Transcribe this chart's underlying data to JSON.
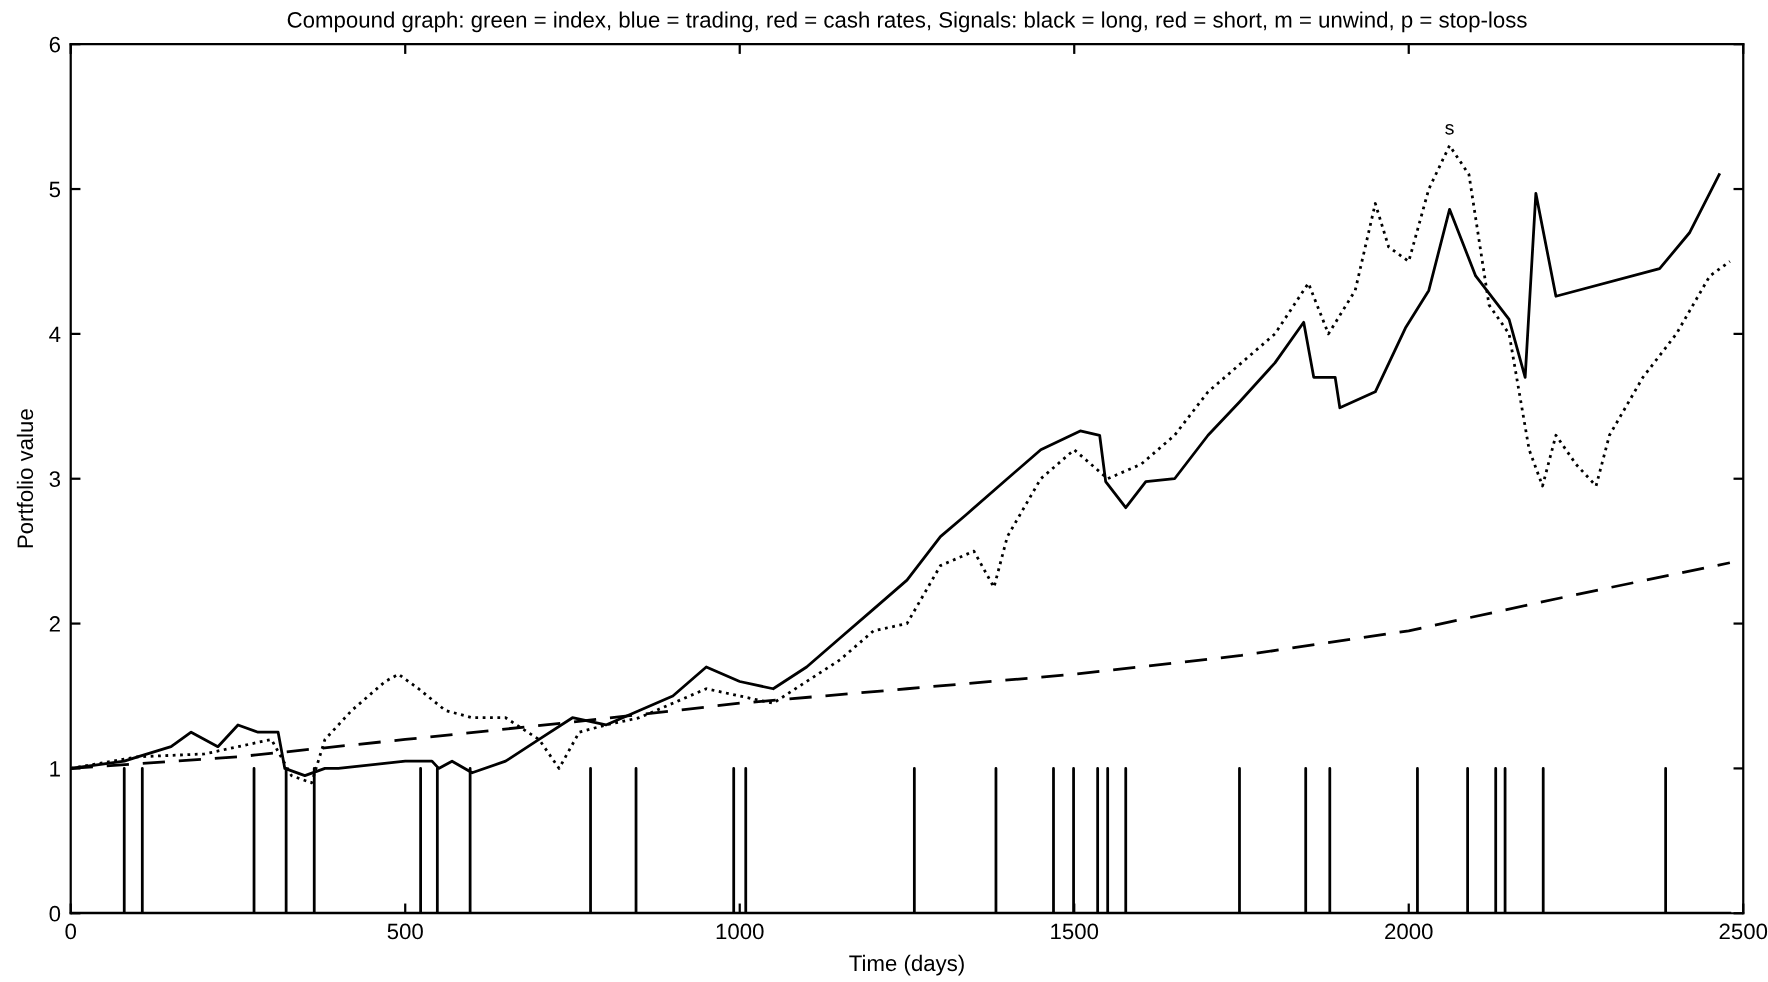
{
  "chart_data": {
    "type": "line",
    "title": "Compound graph: green = index, blue = trading, red = cash rates, Signals: black = long, red = short, m = unwind, p = stop-loss",
    "xlabel": "Time (days)",
    "ylabel": "Portfolio value",
    "xlim": [
      0,
      2500
    ],
    "ylim": [
      0,
      6
    ],
    "xticks": [
      0,
      500,
      1000,
      1500,
      2000,
      2500
    ],
    "yticks": [
      0,
      1,
      2,
      3,
      4,
      5,
      6
    ],
    "grid": false,
    "marker": "none",
    "series": [
      {
        "line_style": "dotted",
        "color": "#000000",
        "x": [
          0,
          100,
          200,
          300,
          330,
          360,
          380,
          420,
          470,
          490,
          520,
          560,
          600,
          650,
          700,
          730,
          760,
          800,
          850,
          900,
          950,
          1000,
          1050,
          1100,
          1150,
          1200,
          1250,
          1300,
          1350,
          1380,
          1400,
          1450,
          1500,
          1550,
          1600,
          1650,
          1700,
          1750,
          1800,
          1850,
          1880,
          1920,
          1950,
          1970,
          2000,
          2030,
          2061,
          2090,
          2120,
          2150,
          2180,
          2200,
          2220,
          2250,
          2280,
          2300,
          2350,
          2400,
          2450,
          2480
        ],
        "values": [
          1.0,
          1.08,
          1.1,
          1.2,
          0.95,
          0.9,
          1.2,
          1.4,
          1.6,
          1.65,
          1.55,
          1.4,
          1.35,
          1.35,
          1.2,
          1.0,
          1.25,
          1.3,
          1.35,
          1.45,
          1.55,
          1.5,
          1.45,
          1.6,
          1.75,
          1.95,
          2.0,
          2.4,
          2.5,
          2.25,
          2.6,
          3.0,
          3.2,
          3.0,
          3.1,
          3.3,
          3.6,
          3.8,
          4.0,
          4.35,
          4.0,
          4.3,
          4.9,
          4.6,
          4.5,
          5.0,
          5.3,
          5.1,
          4.2,
          4.0,
          3.2,
          2.95,
          3.3,
          3.1,
          2.95,
          3.3,
          3.7,
          4.0,
          4.4,
          4.5
        ]
      },
      {
        "line_style": "solid",
        "color": "#000000",
        "x": [
          0,
          80,
          100,
          150,
          180,
          220,
          250,
          280,
          310,
          320,
          350,
          380,
          400,
          500,
          540,
          550,
          570,
          600,
          650,
          700,
          750,
          800,
          850,
          900,
          950,
          1000,
          1050,
          1100,
          1150,
          1200,
          1250,
          1300,
          1338,
          1400,
          1450,
          1509,
          1538,
          1547,
          1577,
          1607,
          1650,
          1700,
          1747,
          1800,
          1843,
          1858,
          1890,
          1897,
          1950,
          1995,
          2030,
          2061,
          2100,
          2150,
          2174,
          2190,
          2220,
          2375,
          2420,
          2464
        ],
        "values": [
          1.0,
          1.05,
          1.08,
          1.15,
          1.25,
          1.15,
          1.3,
          1.25,
          1.25,
          1.0,
          0.95,
          1.0,
          1.0,
          1.05,
          1.05,
          1.0,
          1.05,
          0.97,
          1.05,
          1.2,
          1.35,
          1.3,
          1.4,
          1.5,
          1.7,
          1.6,
          1.55,
          1.7,
          1.9,
          2.1,
          2.3,
          2.6,
          2.75,
          3.0,
          3.2,
          3.33,
          3.3,
          2.98,
          2.8,
          2.98,
          3.0,
          3.3,
          3.53,
          3.8,
          4.08,
          3.7,
          3.7,
          3.49,
          3.6,
          4.04,
          4.3,
          4.86,
          4.4,
          4.1,
          3.7,
          4.97,
          4.26,
          4.45,
          4.7,
          5.1
        ]
      },
      {
        "line_style": "dashed",
        "color": "#000000",
        "x": [
          0,
          250,
          500,
          750,
          1000,
          1250,
          1500,
          1750,
          2000,
          2250,
          2480
        ],
        "values": [
          1.0,
          1.08,
          1.2,
          1.32,
          1.45,
          1.55,
          1.65,
          1.78,
          1.95,
          2.2,
          2.42
        ]
      },
      {
        "line_style": "solid",
        "color": "#000000",
        "x": [
          0,
          80,
          80,
          80,
          107,
          107,
          107,
          274,
          274,
          274,
          322,
          322,
          322,
          364,
          364,
          364,
          523,
          523,
          523,
          548,
          548,
          548,
          597,
          597,
          597,
          777,
          777,
          777,
          845,
          845,
          845,
          991,
          991,
          991,
          1009,
          1009,
          1009,
          1261,
          1261,
          1261,
          1383,
          1383,
          1383,
          1469,
          1469,
          1469,
          1499,
          1499,
          1499,
          1535,
          1535,
          1535,
          1550,
          1550,
          1550,
          1577,
          1577,
          1577,
          1747,
          1747,
          1747,
          1846,
          1846,
          1846,
          1882,
          1882,
          1882,
          2013,
          2013,
          2013,
          2088,
          2088,
          2088,
          2130,
          2130,
          2130,
          2144,
          2144,
          2144,
          2201,
          2201,
          2201,
          2384,
          2384,
          2384,
          2480
        ],
        "values": [
          0,
          0,
          1,
          0,
          0,
          1,
          0,
          0,
          1,
          0,
          0,
          1,
          0,
          0,
          1,
          0,
          0,
          1,
          0,
          0,
          1,
          0,
          0,
          1,
          0,
          0,
          1,
          0,
          0,
          1,
          0,
          0,
          1,
          0,
          0,
          1,
          0,
          0,
          1,
          0,
          0,
          1,
          0,
          0,
          1,
          0,
          0,
          1,
          0,
          0,
          1,
          0,
          0,
          1,
          0,
          0,
          1,
          0,
          0,
          1,
          0,
          0,
          1,
          0,
          0,
          1,
          0,
          0,
          1,
          0,
          0,
          1,
          0,
          0,
          1,
          0,
          0,
          1,
          0,
          0,
          1,
          0,
          0,
          1,
          0,
          0
        ]
      }
    ],
    "annotations": [
      {
        "text": "s",
        "x": 2061,
        "y": 5.3
      }
    ]
  }
}
